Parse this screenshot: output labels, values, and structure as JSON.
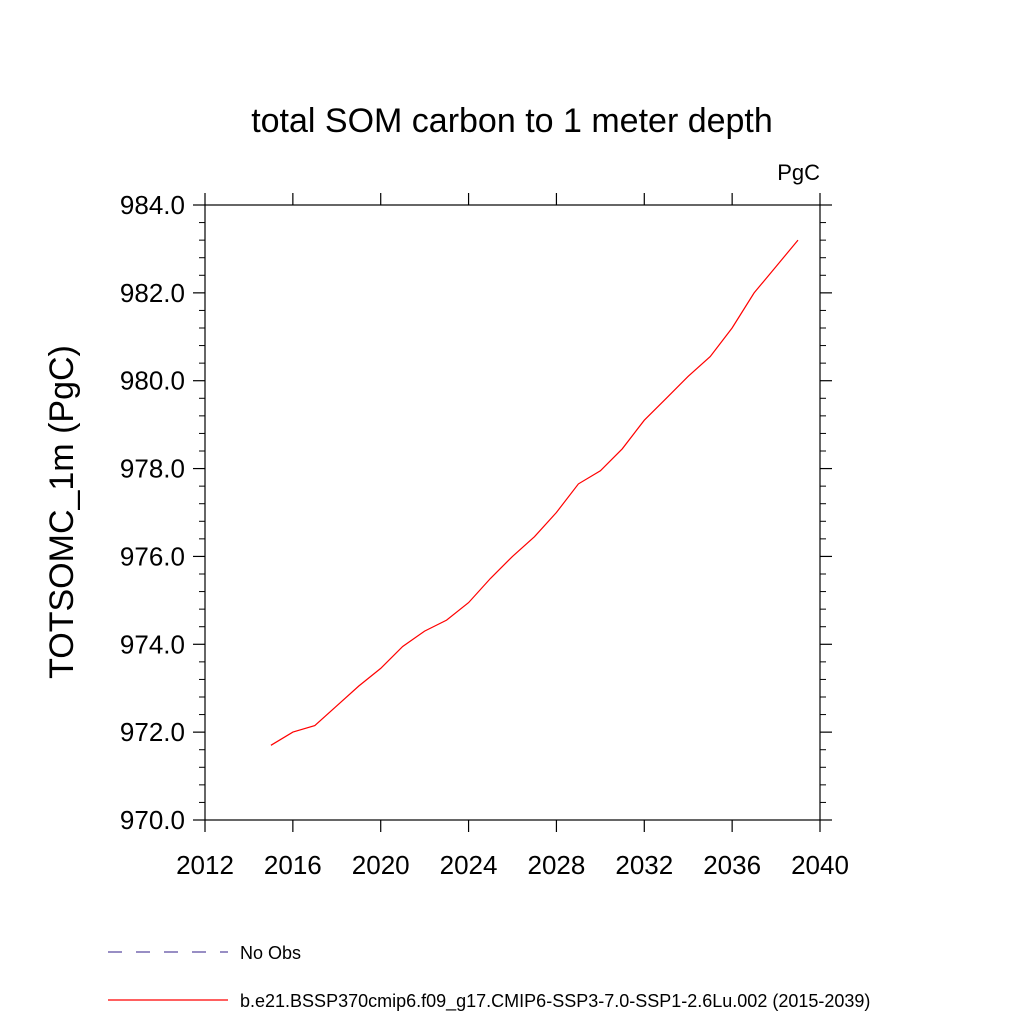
{
  "chart_data": {
    "type": "line",
    "title": "total SOM carbon to 1 meter depth",
    "units": "PgC",
    "ylabel": "TOTSOMC_1m  (PgC)",
    "xlabel": "",
    "xlim": [
      2012,
      2040
    ],
    "ylim": [
      970.0,
      984.0
    ],
    "x_ticks": [
      2012,
      2016,
      2020,
      2024,
      2028,
      2032,
      2036,
      2040
    ],
    "y_ticks": [
      970.0,
      972.0,
      974.0,
      976.0,
      978.0,
      980.0,
      982.0,
      984.0
    ],
    "y_tick_labels": [
      "970.0",
      "972.0",
      "974.0",
      "976.0",
      "978.0",
      "980.0",
      "982.0",
      "984.0"
    ],
    "grid": false,
    "legend_position": "bottom",
    "series": [
      {
        "name": "b.e21.BSSP370cmip6.f09_g17.CMIP6-SSP3-7.0-SSP1-2.6Lu.002 (2015-2039)",
        "color": "#ff0000",
        "style": "solid",
        "x": [
          2015,
          2016,
          2017,
          2018,
          2019,
          2020,
          2021,
          2022,
          2023,
          2024,
          2025,
          2026,
          2027,
          2028,
          2029,
          2030,
          2031,
          2032,
          2033,
          2034,
          2035,
          2036,
          2037,
          2038,
          2039
        ],
        "values": [
          971.7,
          972.0,
          972.15,
          972.6,
          973.05,
          973.45,
          973.95,
          974.3,
          974.55,
          974.95,
          975.5,
          976.0,
          976.45,
          977.0,
          977.65,
          977.95,
          978.45,
          979.1,
          979.6,
          980.1,
          980.55,
          981.2,
          982.0,
          982.6,
          983.2
        ]
      }
    ],
    "legend": [
      {
        "label": "No Obs",
        "color": "#5a4ba0",
        "style": "dashed"
      },
      {
        "label": "b.e21.BSSP370cmip6.f09_g17.CMIP6-SSP3-7.0-SSP1-2.6Lu.002 (2015-2039)",
        "color": "#ff0000",
        "style": "solid"
      }
    ]
  }
}
